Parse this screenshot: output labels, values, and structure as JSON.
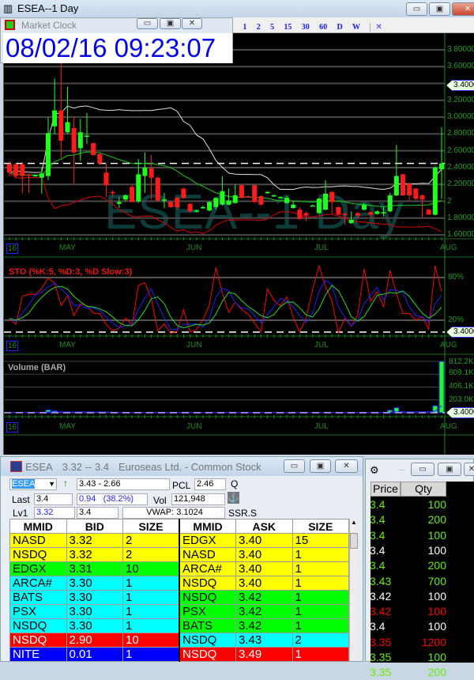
{
  "chart_window": {
    "title": "ESEA--1 Day",
    "watermark": "ESEA--1 Day",
    "intervals": [
      "1",
      "2",
      "5",
      "15",
      "30",
      "60",
      "D",
      "W"
    ],
    "close_chart_glyph": "✕",
    "buttons": {
      "minimize": "▭",
      "maximize": "▣",
      "close": "✕"
    }
  },
  "market_clock": {
    "title": "Market Clock",
    "time": "08/02/16 09:23:07"
  },
  "chart_data": {
    "type": "candlestick",
    "price_axis": {
      "ticks": [
        "3.80000",
        "3.60000",
        "3.40000",
        "3.20000",
        "3.00000",
        "2.80000",
        "2.60000",
        "2.40000",
        "2.20000",
        "2",
        "1.80000",
        "1.60000"
      ],
      "range": [
        1.6,
        3.8
      ],
      "grid": true
    },
    "last_price_tag": "3.4000",
    "reference_line": 2.45,
    "x_labels": [
      "16",
      "MAY",
      "JUN",
      "JUL",
      "AUG"
    ],
    "ohlc": [
      [
        2.44,
        2.48,
        2.3,
        2.34
      ],
      [
        2.44,
        2.46,
        2.27,
        2.3
      ],
      [
        2.44,
        2.45,
        2.09,
        2.3
      ],
      [
        2.32,
        2.33,
        2.1,
        2.31
      ],
      [
        2.3,
        2.31,
        2.29,
        2.31
      ],
      [
        2.28,
        2.4,
        2.09,
        2.33
      ],
      [
        2.3,
        3.0,
        2.25,
        2.81
      ],
      [
        2.89,
        3.46,
        2.8,
        3.08
      ],
      [
        3.08,
        3.64,
        2.51,
        2.72
      ],
      [
        2.82,
        3.36,
        2.8,
        2.94
      ],
      [
        2.87,
        3.0,
        2.2,
        2.58
      ],
      [
        2.63,
        2.98,
        2.48,
        2.82
      ],
      [
        2.77,
        3.05,
        2.68,
        2.78
      ],
      [
        2.69,
        2.7,
        2.54,
        2.55
      ],
      [
        2.56,
        2.57,
        2.43,
        2.45
      ],
      [
        2.34,
        2.45,
        2.05,
        2.19
      ],
      [
        2.11,
        2.13,
        2.05,
        2.1
      ],
      [
        1.97,
        2.05,
        1.92,
        1.99
      ],
      [
        2.02,
        2.08,
        2.0,
        2.07
      ],
      [
        2.17,
        2.2,
        1.99,
        1.99
      ],
      [
        2.0,
        2.5,
        1.98,
        2.32
      ],
      [
        2.3,
        2.58,
        2.1,
        2.4
      ],
      [
        2.39,
        2.55,
        2.02,
        2.28
      ],
      [
        2.28,
        2.3,
        2.0,
        2.01
      ],
      [
        2.01,
        2.1,
        1.92,
        2.02
      ],
      [
        1.99,
        2.0,
        1.92,
        1.93
      ],
      [
        2.04,
        2.05,
        1.9,
        1.93
      ],
      [
        2.15,
        2.16,
        2.03,
        2.04
      ],
      [
        1.97,
        1.98,
        1.87,
        1.88
      ],
      [
        1.88,
        1.9,
        1.87,
        1.89
      ],
      [
        1.92,
        1.95,
        1.91,
        1.93
      ],
      [
        1.89,
        2.0,
        1.88,
        1.99
      ],
      [
        1.93,
        2.05,
        1.9,
        2.04
      ],
      [
        1.96,
        2.3,
        1.95,
        2.12
      ],
      [
        1.96,
        2.15,
        1.95,
        2.01
      ],
      [
        1.98,
        2.2,
        1.97,
        2.07
      ],
      [
        2.19,
        2.2,
        2.03,
        2.04
      ],
      [
        2.06,
        2.07,
        2.05,
        2.05
      ],
      [
        2.19,
        2.2,
        1.98,
        1.99
      ],
      [
        2.06,
        2.07,
        1.95,
        1.96
      ],
      [
        2.1,
        2.12,
        2.09,
        2.11
      ],
      [
        2.07,
        2.08,
        2.06,
        2.07
      ],
      [
        2.05,
        2.06,
        2.04,
        2.05
      ],
      [
        1.98,
        2.06,
        1.97,
        2.04
      ],
      [
        1.92,
        2.0,
        1.91,
        1.96
      ],
      [
        1.9,
        1.93,
        1.78,
        1.79
      ],
      [
        1.86,
        1.88,
        1.76,
        1.83
      ],
      [
        1.95,
        1.96,
        1.94,
        1.95
      ],
      [
        1.86,
        2.04,
        1.85,
        2.03
      ],
      [
        1.9,
        2.25,
        1.89,
        2.09
      ],
      [
        2.11,
        2.12,
        1.85,
        1.99
      ],
      [
        1.93,
        1.94,
        1.83,
        1.84
      ],
      [
        1.85,
        1.86,
        1.72,
        1.84
      ],
      [
        1.74,
        1.88,
        1.73,
        1.78
      ],
      [
        1.86,
        1.87,
        1.8,
        1.83
      ],
      [
        1.9,
        1.98,
        1.89,
        1.96
      ],
      [
        1.87,
        1.88,
        1.8,
        1.84
      ],
      [
        1.85,
        1.89,
        1.84,
        1.88
      ],
      [
        1.86,
        1.93,
        1.82,
        1.87
      ],
      [
        1.88,
        2.1,
        1.87,
        2.07
      ],
      [
        2.07,
        2.67,
        2.06,
        2.3
      ],
      [
        2.32,
        2.33,
        2.06,
        2.07
      ],
      [
        2.21,
        2.22,
        2.0,
        2.07
      ],
      [
        2.15,
        2.16,
        2.01,
        2.03
      ],
      [
        2.07,
        2.08,
        1.8,
        2.02
      ],
      [
        1.9,
        1.91,
        1.84,
        1.84
      ],
      [
        1.84,
        2.42,
        1.83,
        2.4
      ],
      [
        2.38,
        2.88,
        2.03,
        2.45
      ]
    ],
    "stochastic": {
      "title": "STO (%K:5, %D:3, %D Slow:3)",
      "levels": [
        "80%",
        "20%"
      ],
      "colors": {
        "k": "#ff0000",
        "d": "#2020ff",
        "slow": "#22dd22"
      }
    },
    "volume": {
      "title": "Volume (BAR)",
      "ticks": [
        "812.2K",
        "609.1K",
        "406.1K",
        "203.0K"
      ],
      "max_k": 812.2,
      "values_k": [
        6,
        5,
        5,
        5,
        15,
        5,
        45,
        30,
        8,
        5,
        5,
        5,
        5,
        5,
        5,
        5,
        5,
        5,
        5,
        5,
        5,
        5,
        5,
        5,
        5,
        5,
        5,
        5,
        5,
        5,
        5,
        5,
        5,
        5,
        5,
        5,
        5,
        5,
        5,
        5,
        5,
        5,
        5,
        5,
        5,
        5,
        5,
        5,
        5,
        5,
        5,
        5,
        5,
        5,
        5,
        5,
        5,
        5,
        5,
        40,
        80,
        8,
        5,
        5,
        5,
        5,
        110,
        812.2
      ]
    }
  },
  "level2": {
    "title": {
      "symbol": "ESEA",
      "range": "3.32 -- 3.4",
      "name": "Euroseas Ltd. - Common Stock"
    },
    "symbol_input": "ESEA",
    "day_range": "3.43 - 2.66",
    "pcl_label": "PCL",
    "pcl": "2.46",
    "exchange": "Q",
    "last_label": "Last",
    "last": "3.4",
    "change": "0.94   (38.2%)",
    "vol_label": "Vol",
    "volume": "121,948",
    "lv1_label": "Lv1",
    "lv1_bid": "3.32",
    "lv1_ask": "3.4",
    "vwap": "VWAP: 3.1024",
    "ssr": "SSR.S",
    "headers": [
      "MMID",
      "BID",
      "SIZE",
      "MMID",
      "ASK",
      "SIZE"
    ],
    "bids": [
      [
        "NASD",
        "3.32",
        "2",
        "yellow"
      ],
      [
        "NSDQ",
        "3.32",
        "2",
        "yellow"
      ],
      [
        "EDGX",
        "3.31",
        "10",
        "green"
      ],
      [
        "ARCA#",
        "3.30",
        "1",
        "cyan"
      ],
      [
        "BATS",
        "3.30",
        "1",
        "cyan"
      ],
      [
        "PSX",
        "3.30",
        "1",
        "cyan"
      ],
      [
        "NSDQ",
        "3.30",
        "1",
        "cyan"
      ],
      [
        "NSDQ",
        "2.90",
        "10",
        "red"
      ],
      [
        "NITE",
        "0.01",
        "1",
        "blue"
      ]
    ],
    "asks": [
      [
        "EDGX",
        "3.40",
        "15",
        "yellow"
      ],
      [
        "NASD",
        "3.40",
        "1",
        "yellow"
      ],
      [
        "ARCA#",
        "3.40",
        "1",
        "yellow"
      ],
      [
        "NSDQ",
        "3.40",
        "1",
        "yellow"
      ],
      [
        "NSDQ",
        "3.42",
        "1",
        "green"
      ],
      [
        "PSX",
        "3.42",
        "1",
        "green"
      ],
      [
        "BATS",
        "3.42",
        "1",
        "green"
      ],
      [
        "NSDQ",
        "3.43",
        "2",
        "cyan"
      ],
      [
        "NSDQ",
        "3.49",
        "1",
        "red"
      ]
    ],
    "level_colors": {
      "yellow": "#ffff00",
      "green": "#00ff00",
      "cyan": "#00ffff",
      "red": "#ff0000",
      "blue": "#0000ff"
    }
  },
  "time_sales": {
    "title": "...",
    "headers": [
      "Price",
      "Qty"
    ],
    "rows": [
      [
        "3.4",
        "100",
        "green"
      ],
      [
        "3.4",
        "200",
        "green"
      ],
      [
        "3.4",
        "100",
        "green"
      ],
      [
        "3.4",
        "100",
        "white"
      ],
      [
        "3.4",
        "200",
        "green"
      ],
      [
        "3.43",
        "700",
        "green"
      ],
      [
        "3.42",
        "100",
        "white"
      ],
      [
        "3.42",
        "100",
        "red"
      ],
      [
        "3.4",
        "100",
        "white"
      ],
      [
        "3.35",
        "1200",
        "red"
      ],
      [
        "3.35",
        "100",
        "green"
      ],
      [
        "3.35",
        "200",
        "green"
      ]
    ],
    "colors": {
      "green": "#66ee00",
      "white": "#ffffff",
      "red": "#ff0000"
    }
  }
}
